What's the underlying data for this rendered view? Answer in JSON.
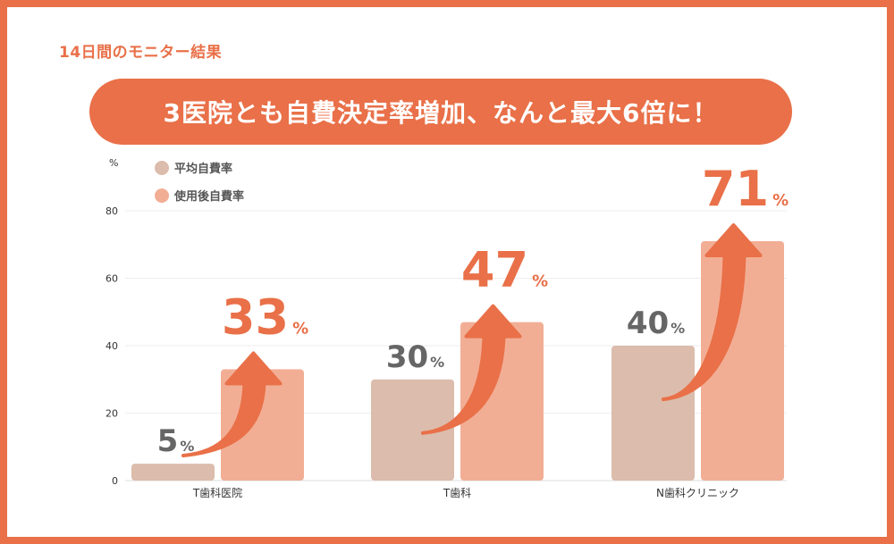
{
  "header": {
    "caption": "14日間のモニター結果",
    "headline": "3医院とも自費決定率増加、なんと最大6倍に！"
  },
  "colors": {
    "accent": "#e97048",
    "before": "#dcbcac",
    "after": "#f2ae95",
    "before_text": "#666666",
    "grid": "#eeeeee",
    "background": "#ffffff"
  },
  "chart_data": {
    "type": "bar",
    "title": "3医院とも自費決定率増加、なんと最大6倍に！",
    "ylabel": "%",
    "xlabel": "",
    "ylim": [
      0,
      80
    ],
    "yticks": [
      0,
      20,
      40,
      60,
      80
    ],
    "grid": true,
    "legend_position": "top-left",
    "categories": [
      "T歯科医院",
      "T歯科",
      "N歯科クリニック"
    ],
    "series": [
      {
        "name": "平均自費率",
        "values": [
          5,
          30,
          40
        ]
      },
      {
        "name": "使用後自費率",
        "values": [
          33,
          47,
          71
        ]
      }
    ],
    "value_labels": {
      "unit": "%",
      "before": [
        "5",
        "30",
        "40"
      ],
      "after": [
        "33",
        "47",
        "71"
      ]
    },
    "annotations": "curved arrows from each before-bar to its after-bar"
  }
}
